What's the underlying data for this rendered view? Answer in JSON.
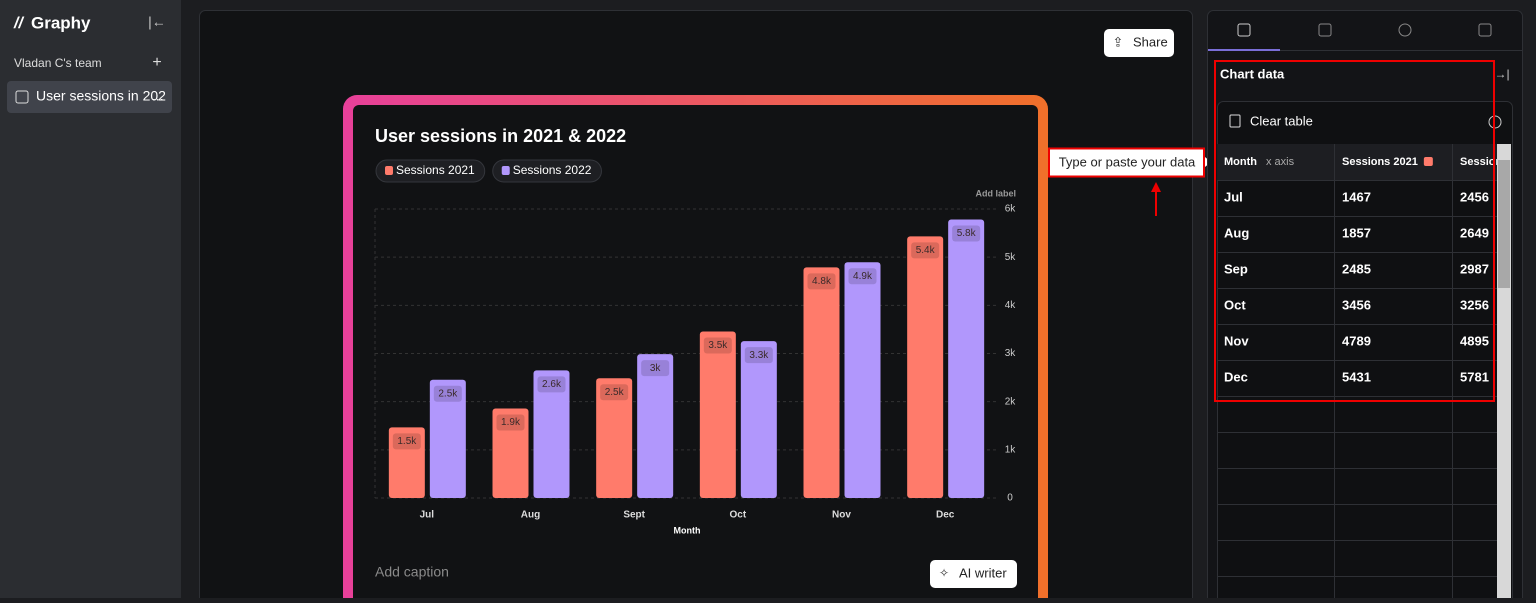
{
  "sidebar": {
    "logo": "Graphy",
    "team": "Vladan C's team"
  },
  "toolbar": {
    "share": "Share"
  },
  "chart_data": {
    "type": "bar",
    "title": "User sessions in 2021 & 2022",
    "categories": [
      "Jul",
      "Aug",
      "Sept",
      "Oct",
      "Nov",
      "Dec"
    ],
    "series": [
      {
        "name": "Sessions 2021",
        "color": "#ff7b6b",
        "values": [
          1467,
          1857,
          2485,
          3456,
          4789,
          5431
        ],
        "value_labels": [
          "1.5k",
          "1.9k",
          "2.5k",
          "3.5k",
          "4.8k",
          "5.4k"
        ]
      },
      {
        "name": "Sessions 2022",
        "color": "#b197fc",
        "values": [
          2456,
          2649,
          2987,
          3256,
          4895,
          5781
        ],
        "value_labels": [
          "2.5k",
          "2.6k",
          "3k",
          "3.3k",
          "4.9k",
          "5.8k"
        ]
      }
    ],
    "ylim": [
      0,
      6000
    ],
    "yticks": [
      0,
      {
        "value": 1000,
        "label": "1k"
      },
      {
        "value": 2000,
        "label": "2k"
      },
      {
        "value": 3000,
        "label": "3k"
      },
      {
        "value": 4000,
        "label": "4k"
      },
      {
        "value": 5000,
        "label": "5k"
      },
      {
        "value": 6000,
        "label": "6k"
      }
    ],
    "xlabel": "Month",
    "axis_note": "Add label",
    "grid": true
  },
  "card": {
    "caption": "Add caption",
    "ai_writer": "AI writer"
  },
  "annotation": {
    "text": "Type or paste your data"
  },
  "panel": {
    "heading": "Chart data",
    "clear": "Clear table",
    "table": {
      "month_header": "Month",
      "x_axis_tag": "x axis",
      "months": [
        "Jul",
        "Aug",
        "Sep",
        "Oct",
        "Nov",
        "Dec"
      ]
    }
  }
}
